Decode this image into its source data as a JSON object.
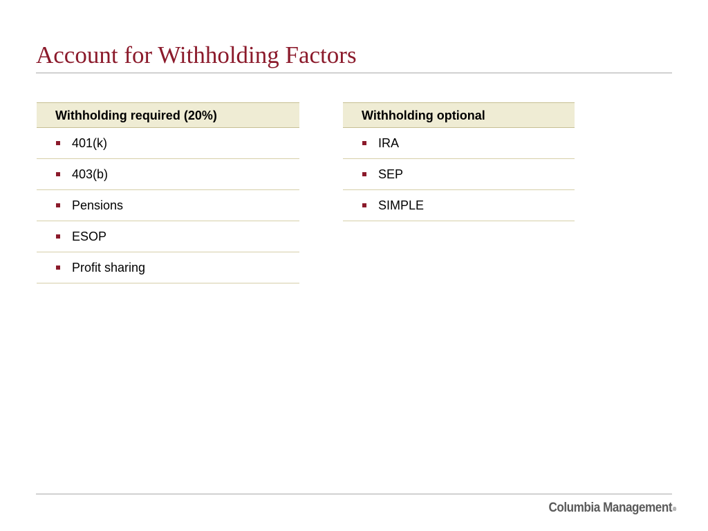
{
  "slide": {
    "title": "Account for Withholding Factors"
  },
  "columns": {
    "left": {
      "header": "Withholding required (20%)",
      "items": [
        "401(k)",
        "403(b)",
        "Pensions",
        "ESOP",
        "Profit sharing"
      ]
    },
    "right": {
      "header": "Withholding optional",
      "items": [
        "IRA",
        "SEP",
        "SIMPLE"
      ]
    }
  },
  "footer": {
    "logo_text": "Columbia Management",
    "logo_mark": "®"
  },
  "colors": {
    "title": "#8b1a2b",
    "bullet": "#8b1a2b",
    "header_fill": "#efecd4",
    "rule": "#a8a8a8"
  }
}
